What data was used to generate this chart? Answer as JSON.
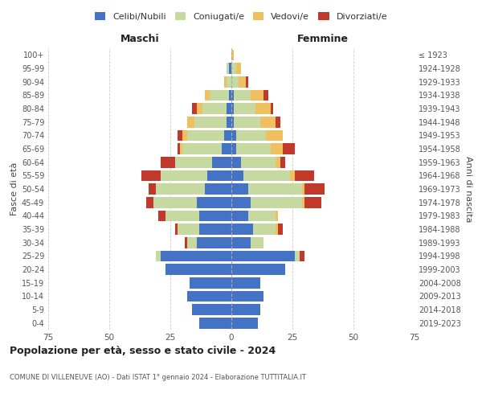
{
  "age_groups": [
    "0-4",
    "5-9",
    "10-14",
    "15-19",
    "20-24",
    "25-29",
    "30-34",
    "35-39",
    "40-44",
    "45-49",
    "50-54",
    "55-59",
    "60-64",
    "65-69",
    "70-74",
    "75-79",
    "80-84",
    "85-89",
    "90-94",
    "95-99",
    "100+"
  ],
  "birth_years": [
    "2019-2023",
    "2014-2018",
    "2009-2013",
    "2004-2008",
    "1999-2003",
    "1994-1998",
    "1989-1993",
    "1984-1988",
    "1979-1983",
    "1974-1978",
    "1969-1973",
    "1964-1968",
    "1959-1963",
    "1954-1958",
    "1949-1953",
    "1944-1948",
    "1939-1943",
    "1934-1938",
    "1929-1933",
    "1924-1928",
    "≤ 1923"
  ],
  "males": {
    "celibe": [
      13,
      16,
      18,
      17,
      27,
      29,
      14,
      13,
      13,
      14,
      11,
      10,
      8,
      4,
      3,
      2,
      2,
      1,
      0,
      1,
      0
    ],
    "coniugato": [
      0,
      0,
      0,
      0,
      0,
      2,
      4,
      9,
      14,
      18,
      20,
      19,
      15,
      16,
      15,
      13,
      10,
      8,
      2,
      1,
      0
    ],
    "vedovo": [
      0,
      0,
      0,
      0,
      0,
      0,
      0,
      0,
      0,
      0,
      0,
      0,
      0,
      1,
      2,
      3,
      2,
      2,
      1,
      0,
      0
    ],
    "divorziato": [
      0,
      0,
      0,
      0,
      0,
      0,
      1,
      1,
      3,
      3,
      3,
      8,
      6,
      1,
      2,
      0,
      2,
      0,
      0,
      0,
      0
    ]
  },
  "females": {
    "nubile": [
      11,
      12,
      13,
      12,
      22,
      26,
      8,
      9,
      7,
      8,
      7,
      5,
      4,
      2,
      2,
      1,
      1,
      1,
      0,
      0,
      0
    ],
    "coniugata": [
      0,
      0,
      0,
      0,
      0,
      2,
      5,
      9,
      11,
      21,
      22,
      19,
      14,
      14,
      12,
      11,
      9,
      7,
      3,
      2,
      0
    ],
    "vedova": [
      0,
      0,
      0,
      0,
      0,
      0,
      0,
      1,
      1,
      1,
      1,
      2,
      2,
      5,
      7,
      6,
      6,
      5,
      3,
      2,
      1
    ],
    "divorziata": [
      0,
      0,
      0,
      0,
      0,
      2,
      0,
      2,
      0,
      7,
      8,
      8,
      2,
      5,
      0,
      2,
      1,
      2,
      1,
      0,
      0
    ]
  },
  "colors": {
    "celibe": "#4472c4",
    "coniugato": "#c5d9a0",
    "vedovo": "#f0c060",
    "divorziato": "#c0392b"
  },
  "legend_labels": [
    "Celibi/Nubili",
    "Coniugati/e",
    "Vedovi/e",
    "Divorziati/e"
  ],
  "title": "Popolazione per età, sesso e stato civile - 2024",
  "subtitle": "COMUNE DI VILLENEUVE (AO) - Dati ISTAT 1° gennaio 2024 - Elaborazione TUTTITALIA.IT",
  "xlabel_left": "Maschi",
  "xlabel_right": "Femmine",
  "ylabel_left": "Fasce di età",
  "ylabel_right": "Anni di nascita",
  "xlim": 75,
  "background_color": "#ffffff",
  "grid_color": "#cccccc"
}
